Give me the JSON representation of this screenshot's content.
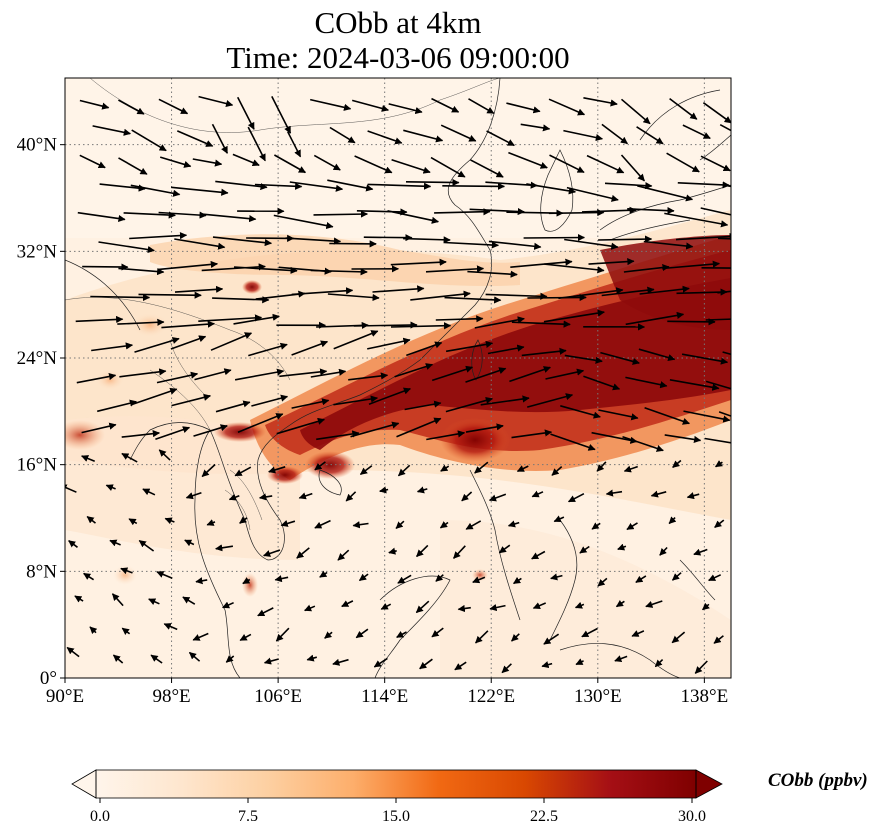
{
  "title": {
    "line1": "CObb at 4km",
    "line2": "Time: 2024-03-06 09:00:00"
  },
  "map": {
    "lon_range": [
      90,
      140
    ],
    "lat_range": [
      0,
      45
    ],
    "lon_ticks": [
      {
        "value": 90,
        "label": "90°E"
      },
      {
        "value": 98,
        "label": "98°E"
      },
      {
        "value": 106,
        "label": "106°E"
      },
      {
        "value": 114,
        "label": "114°E"
      },
      {
        "value": 122,
        "label": "122°E"
      },
      {
        "value": 130,
        "label": "130°E"
      },
      {
        "value": 138,
        "label": "138°E"
      }
    ],
    "lat_ticks": [
      {
        "value": 0,
        "label": "0°"
      },
      {
        "value": 8,
        "label": "8°N"
      },
      {
        "value": 16,
        "label": "16°N"
      },
      {
        "value": 24,
        "label": "24°N"
      },
      {
        "value": 32,
        "label": "32°N"
      },
      {
        "value": 40,
        "label": "40°N"
      }
    ],
    "gridlines": true
  },
  "colorbar": {
    "label": "CObb (ppbv)",
    "min": 0,
    "max": 30,
    "ticks": [
      "0.0",
      "7.5",
      "15.0",
      "22.5",
      "30.0"
    ],
    "colors": [
      "#fff5eb",
      "#fee6ce",
      "#fdd0a2",
      "#fdae6b",
      "#f16913",
      "#d94801",
      "#a50f15",
      "#7f0000"
    ],
    "extend": "both"
  }
}
